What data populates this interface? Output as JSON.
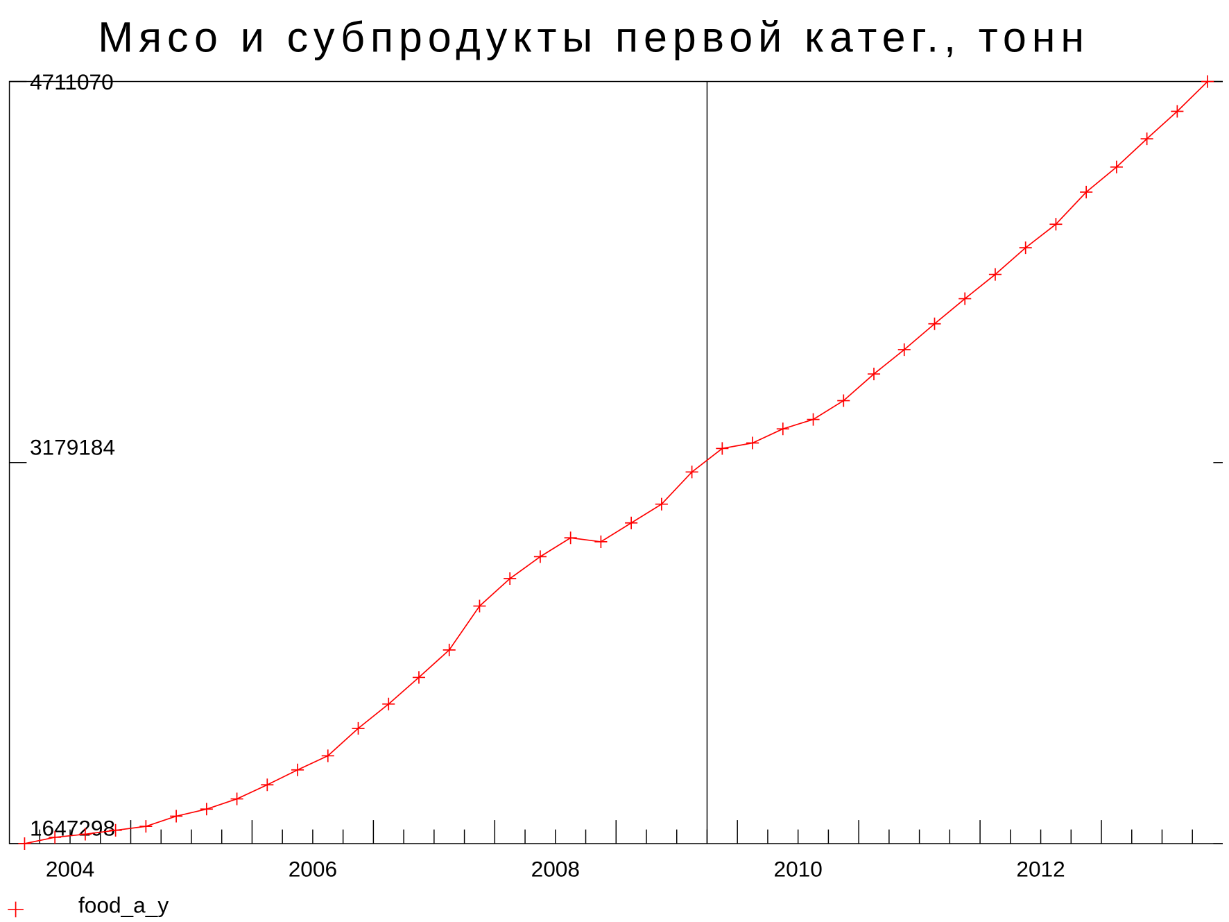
{
  "chart_data": {
    "type": "line",
    "title": "Мясо и субпродукты первой катег., тонн",
    "x": [
      2004.125,
      2004.375,
      2004.625,
      2004.875,
      2005.125,
      2005.375,
      2005.625,
      2005.875,
      2006.125,
      2006.375,
      2006.625,
      2006.875,
      2007.125,
      2007.375,
      2007.625,
      2007.875,
      2008.125,
      2008.375,
      2008.625,
      2008.875,
      2009.125,
      2009.375,
      2009.625,
      2009.875,
      2010.125,
      2010.375,
      2010.625,
      2010.875,
      2011.125,
      2011.375,
      2011.625,
      2011.875,
      2012.125,
      2012.375,
      2012.625,
      2012.875,
      2013.125,
      2013.375,
      2013.625,
      2013.875
    ],
    "series": [
      {
        "name": "food_a_y",
        "color": "#ff0000",
        "values": [
          1647298,
          1672514,
          1685122,
          1700882,
          1716642,
          1757618,
          1785986,
          1826962,
          1883698,
          1943586,
          2000322,
          2110642,
          2208354,
          2315522,
          2425842,
          2602354,
          2712674,
          2800930,
          2876578,
          2860818,
          2936466,
          3012114,
          3141346,
          3235906,
          3257970,
          3314706,
          3352530,
          3428178,
          3535346,
          3633058,
          3737074,
          3837938,
          3935650,
          4042818,
          4137378,
          4266610,
          4367474,
          4480946,
          4591266,
          4711070
        ]
      }
    ],
    "xlim": [
      2004,
      2014
    ],
    "xticks": [
      {
        "value": 2004.5,
        "label": "2004"
      },
      {
        "value": 2006.5,
        "label": "2006"
      },
      {
        "value": 2008.5,
        "label": "2008"
      },
      {
        "value": 2010.5,
        "label": "2010"
      },
      {
        "value": 2012.5,
        "label": "2012"
      }
    ],
    "ylim": [
      1647298,
      4711070
    ],
    "yticks": [
      1647298,
      3179184,
      4711070
    ],
    "vline": 2009.75,
    "grid": false,
    "legend": "bottom-left"
  }
}
